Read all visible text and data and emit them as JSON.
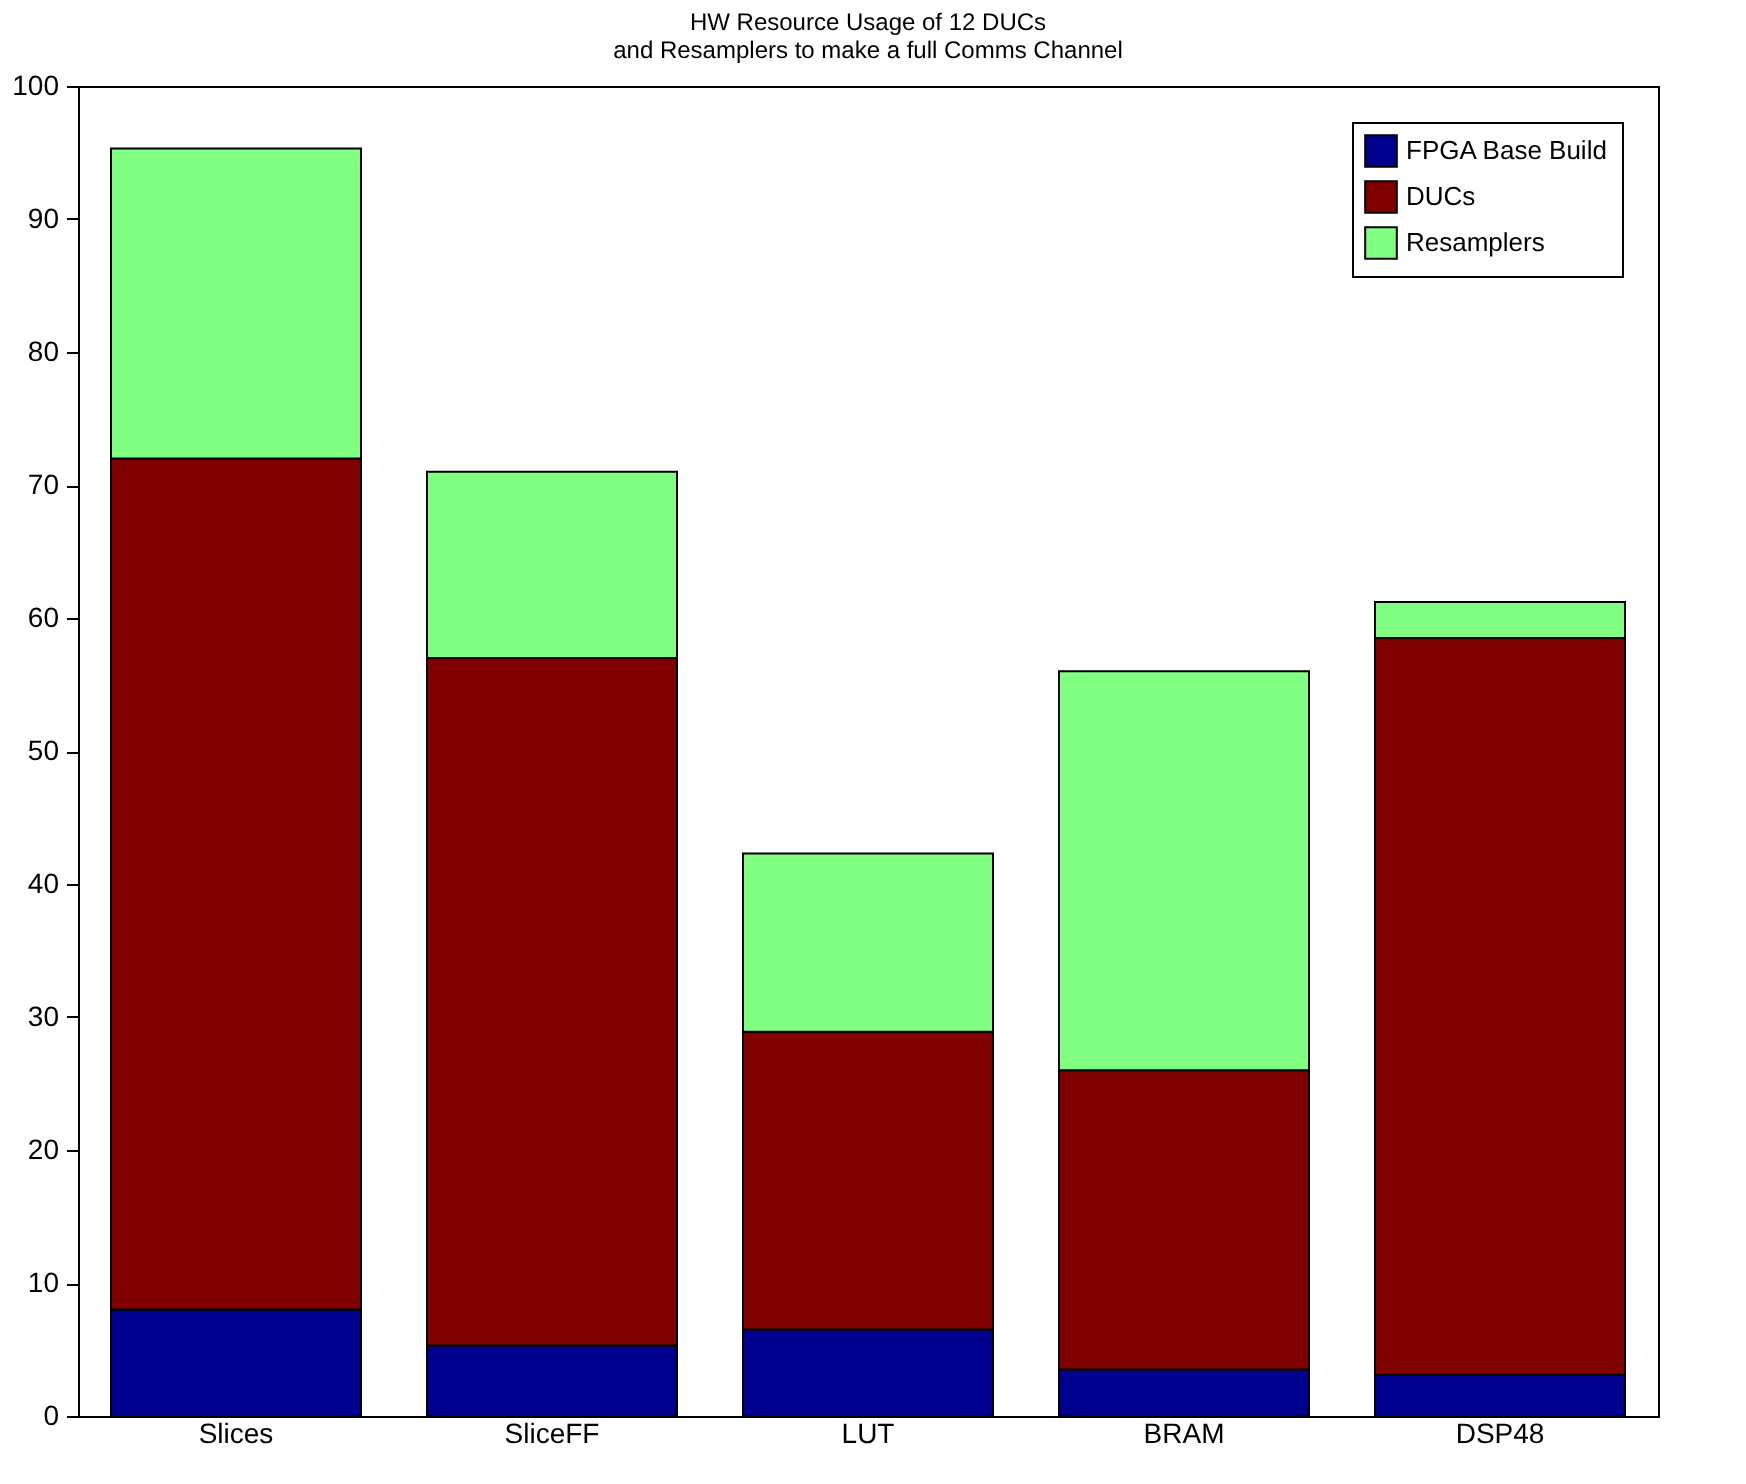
{
  "chart_data": {
    "type": "bar",
    "stacked": true,
    "title": "HW Resource Usage of 12 DUCs\nand Resamplers to make a full Comms Channel",
    "categories": [
      "Slices",
      "SliceFF",
      "LUT",
      "BRAM",
      "DSP48"
    ],
    "series": [
      {
        "name": "FPGA Base Build",
        "color": "#00008f",
        "values": [
          8,
          5.3,
          6.5,
          3.5,
          3.1
        ]
      },
      {
        "name": "DUCs",
        "color": "#800000",
        "values": [
          64,
          51.7,
          22.4,
          22.5,
          55.4
        ]
      },
      {
        "name": "Resamplers",
        "color": "#80ff80",
        "values": [
          23.3,
          14,
          13.4,
          30,
          2.7
        ]
      }
    ],
    "ylim": [
      0,
      100
    ],
    "yticks": [
      0,
      10,
      20,
      30,
      40,
      50,
      60,
      70,
      80,
      90,
      100
    ],
    "grid": false,
    "legend": "top right"
  }
}
